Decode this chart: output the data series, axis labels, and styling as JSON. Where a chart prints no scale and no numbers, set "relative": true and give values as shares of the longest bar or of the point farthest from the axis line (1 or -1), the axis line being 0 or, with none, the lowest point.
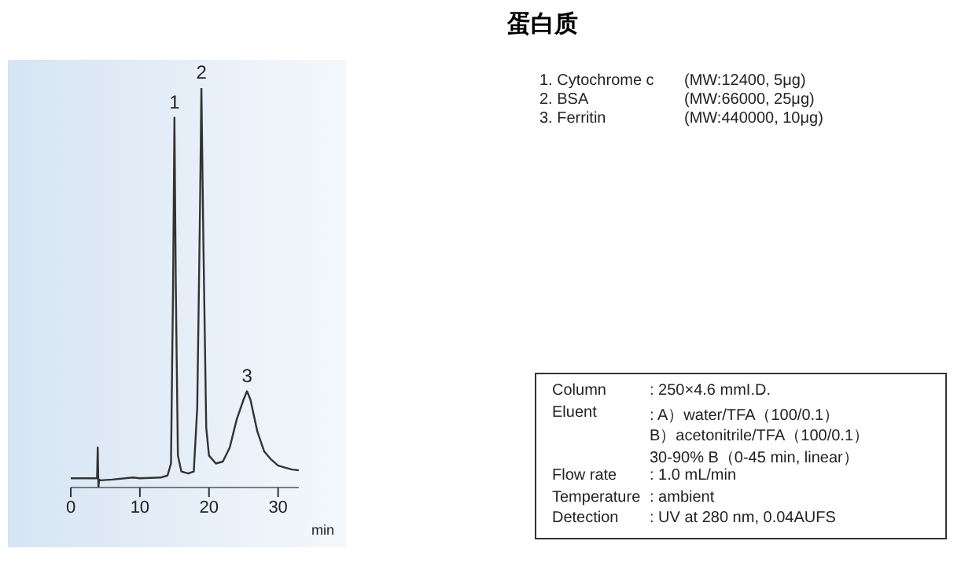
{
  "chart_data": {
    "type": "line",
    "title": "蛋白质",
    "xlabel": "min",
    "relative": true,
    "xlim": [
      0,
      33
    ],
    "xticks": [
      0,
      10,
      20,
      30
    ],
    "x": [
      0,
      3.8,
      3.9,
      4.0,
      4.1,
      4.3,
      6,
      9,
      10,
      13,
      14,
      14.5,
      14.8,
      15.0,
      15.2,
      15.5,
      16,
      17,
      17.8,
      18.3,
      18.7,
      18.9,
      19.2,
      19.6,
      20,
      21,
      22,
      23,
      24,
      25,
      25.5,
      26,
      27,
      28,
      29,
      30,
      32,
      33
    ],
    "series": [
      {
        "color": "#333333",
        "values": [
          0.023,
          0.023,
          0.1,
          0,
          0.02,
          0.018,
          0.02,
          0.025,
          0.023,
          0.025,
          0.03,
          0.06,
          0.5,
          0.926,
          0.5,
          0.08,
          0.04,
          0.035,
          0.04,
          0.2,
          0.7,
          1,
          0.6,
          0.15,
          0.08,
          0.06,
          0.065,
          0.1,
          0.17,
          0.22,
          0.241,
          0.22,
          0.14,
          0.09,
          0.07,
          0.055,
          0.045,
          0.043
        ]
      }
    ],
    "annotations": [
      {
        "text": "1",
        "x": 15.0,
        "y": 0.926
      },
      {
        "text": "2",
        "x": 18.9,
        "y": 1
      },
      {
        "text": "3",
        "x": 25.5,
        "y": 0.241
      },
      "1. Cytochrome c",
      "(MW:12400, 5μg)",
      "2. BSA",
      "(MW:66000, 25μg)",
      "3. Ferritin",
      "(MW:440000, 10μg)",
      "Column",
      ": 250×4.6 mmI.D.",
      "Eluent",
      ": A）water/TFA（100/0.1）",
      "B）acetonitrile/TFA（100/0.1）",
      "30-90% B（0-45 min, linear）",
      "Flow rate",
      ": 1.0 mL/min",
      "Temperature",
      ": ambient",
      "Detection",
      ": UV at 280 nm, 0.04AUFS"
    ]
  }
}
